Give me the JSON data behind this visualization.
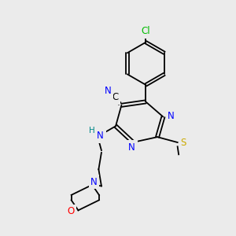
{
  "background_color": "#ebebeb",
  "bond_color": "#000000",
  "atom_colors": {
    "N": "#0000ff",
    "O": "#ff0000",
    "S": "#ccaa00",
    "Cl": "#00bb00",
    "H": "#008888"
  },
  "figsize": [
    3.0,
    3.0
  ],
  "dpi": 100
}
